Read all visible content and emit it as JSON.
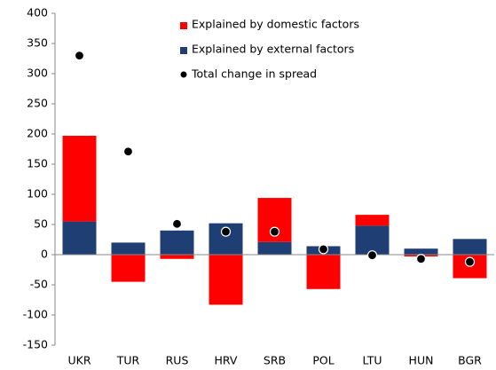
{
  "chart_data": {
    "type": "bar",
    "stacked": true,
    "categories": [
      "UKR",
      "TUR",
      "RUS",
      "HRV",
      "SRB",
      "POL",
      "LTU",
      "HUN",
      "BGR"
    ],
    "series": [
      {
        "name": "Explained by domestic factors",
        "type": "bar",
        "color": "#ff0000",
        "values": [
          142,
          -45,
          -7,
          -83,
          73,
          -57,
          18,
          -3,
          -39
        ]
      },
      {
        "name": "Explained by external factors",
        "type": "bar",
        "color": "#1f3f74",
        "values": [
          55,
          20,
          40,
          52,
          21,
          14,
          48,
          10,
          26
        ]
      },
      {
        "name": "Total change in spread",
        "type": "scatter",
        "color": "#000000",
        "values": [
          330,
          171,
          51,
          38,
          38,
          9,
          -1,
          -7,
          -12
        ]
      }
    ],
    "ylim": [
      -150,
      400
    ],
    "yticks": [
      -150,
      -100,
      -50,
      0,
      50,
      100,
      150,
      200,
      250,
      300,
      350,
      400
    ]
  }
}
